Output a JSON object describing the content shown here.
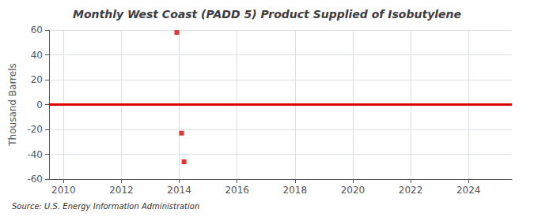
{
  "chart_data": {
    "type": "scatter",
    "title": "Monthly West Coast (PADD 5) Product Supplied of Isobutylene",
    "ylabel": "Thousand Barrels",
    "source": "Source: U.S. Energy Information Administration",
    "series": [
      {
        "type": "line",
        "color": "#dd0000",
        "x": [
          2009.5,
          2025.5
        ],
        "values": [
          0,
          0
        ]
      },
      {
        "type": "scatter",
        "color": "#dd0000",
        "marker": "square",
        "x": [
          2013.917,
          2014.083,
          2014.167
        ],
        "values": [
          58,
          -23,
          -46
        ]
      }
    ],
    "xlim": [
      2009.5,
      2025.5
    ],
    "xticks": [
      2010,
      2012,
      2014,
      2016,
      2018,
      2020,
      2022,
      2024
    ],
    "ylim": [
      -60,
      60
    ],
    "yticks": [
      -60,
      -40,
      -20,
      0,
      20,
      40,
      60
    ],
    "grid": true
  }
}
